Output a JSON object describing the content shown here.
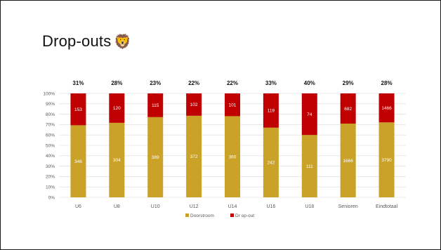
{
  "slide": {
    "title": "Drop-outs",
    "emoji": "🦁"
  },
  "colors": {
    "doorstroom": "#C9A227",
    "dropout": "#C00000",
    "grid": "#D9D9D9"
  },
  "chart_data": {
    "type": "bar",
    "stacked": "100%",
    "categories": [
      "U6",
      "U8",
      "U10",
      "U12",
      "U14",
      "U16",
      "U18",
      "Senioren",
      "Eindtotaal"
    ],
    "series": [
      {
        "name": "Doorstroom",
        "values": [
          346,
          304,
          389,
          372,
          360,
          242,
          111,
          1666,
          3790
        ]
      },
      {
        "name": "Dr op-out",
        "values": [
          153,
          120,
          115,
          102,
          101,
          119,
          74,
          682,
          1466
        ]
      }
    ],
    "dropout_percentages": [
      "31%",
      "28%",
      "23%",
      "22%",
      "22%",
      "33%",
      "40%",
      "29%",
      "28%"
    ],
    "y_ticks": [
      "0%",
      "10%",
      "20%",
      "30%",
      "40%",
      "50%",
      "60%",
      "70%",
      "80%",
      "90%",
      "100%"
    ],
    "ylim": [
      0,
      100
    ],
    "grid": true,
    "legend_position": "bottom"
  }
}
